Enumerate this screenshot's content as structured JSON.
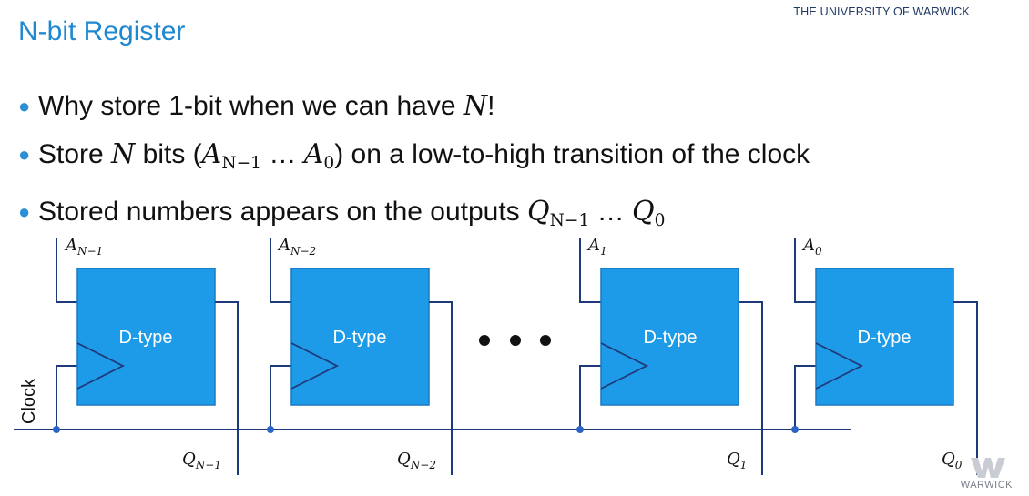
{
  "header": {
    "university": "THE UNIVERSITY OF WARWICK"
  },
  "slide": {
    "title": "N-bit Register",
    "bullets": [
      {
        "pre": "Why store 1-bit when we can have ",
        "math": "N",
        "post": "!"
      },
      {
        "pre": "Store ",
        "math": "N",
        "mid": " bits (",
        "a1": "A",
        "a1sub": "N−1",
        "dots": " … ",
        "a2": "A",
        "a2sub": "0",
        "post": ") on a low-to-high transition of the clock"
      },
      {
        "pre": "Stored numbers appears on the outputs ",
        "q1": "Q",
        "q1sub": "N−1",
        "dots": " … ",
        "q2": "Q",
        "q2sub": "0"
      }
    ]
  },
  "diagram": {
    "flipflops": [
      {
        "label": "D-type",
        "input": "A",
        "input_sub": "N−1",
        "output": "Q",
        "output_sub": "N−1"
      },
      {
        "label": "D-type",
        "input": "A",
        "input_sub": "N−2",
        "output": "Q",
        "output_sub": "N−2"
      },
      {
        "label": "D-type",
        "input": "A",
        "input_sub": "1",
        "output": "Q",
        "output_sub": "1"
      },
      {
        "label": "D-type",
        "input": "A",
        "input_sub": "0",
        "output": "Q",
        "output_sub": "0"
      }
    ],
    "clock_label": "Clock",
    "ellipsis": "• • •",
    "colors": {
      "box_fill": "#1e9be8",
      "box_stroke": "#1878c0",
      "wire": "#1f3a7a",
      "node": "#2a64c8"
    }
  },
  "logo": {
    "text": "WARWICK"
  }
}
